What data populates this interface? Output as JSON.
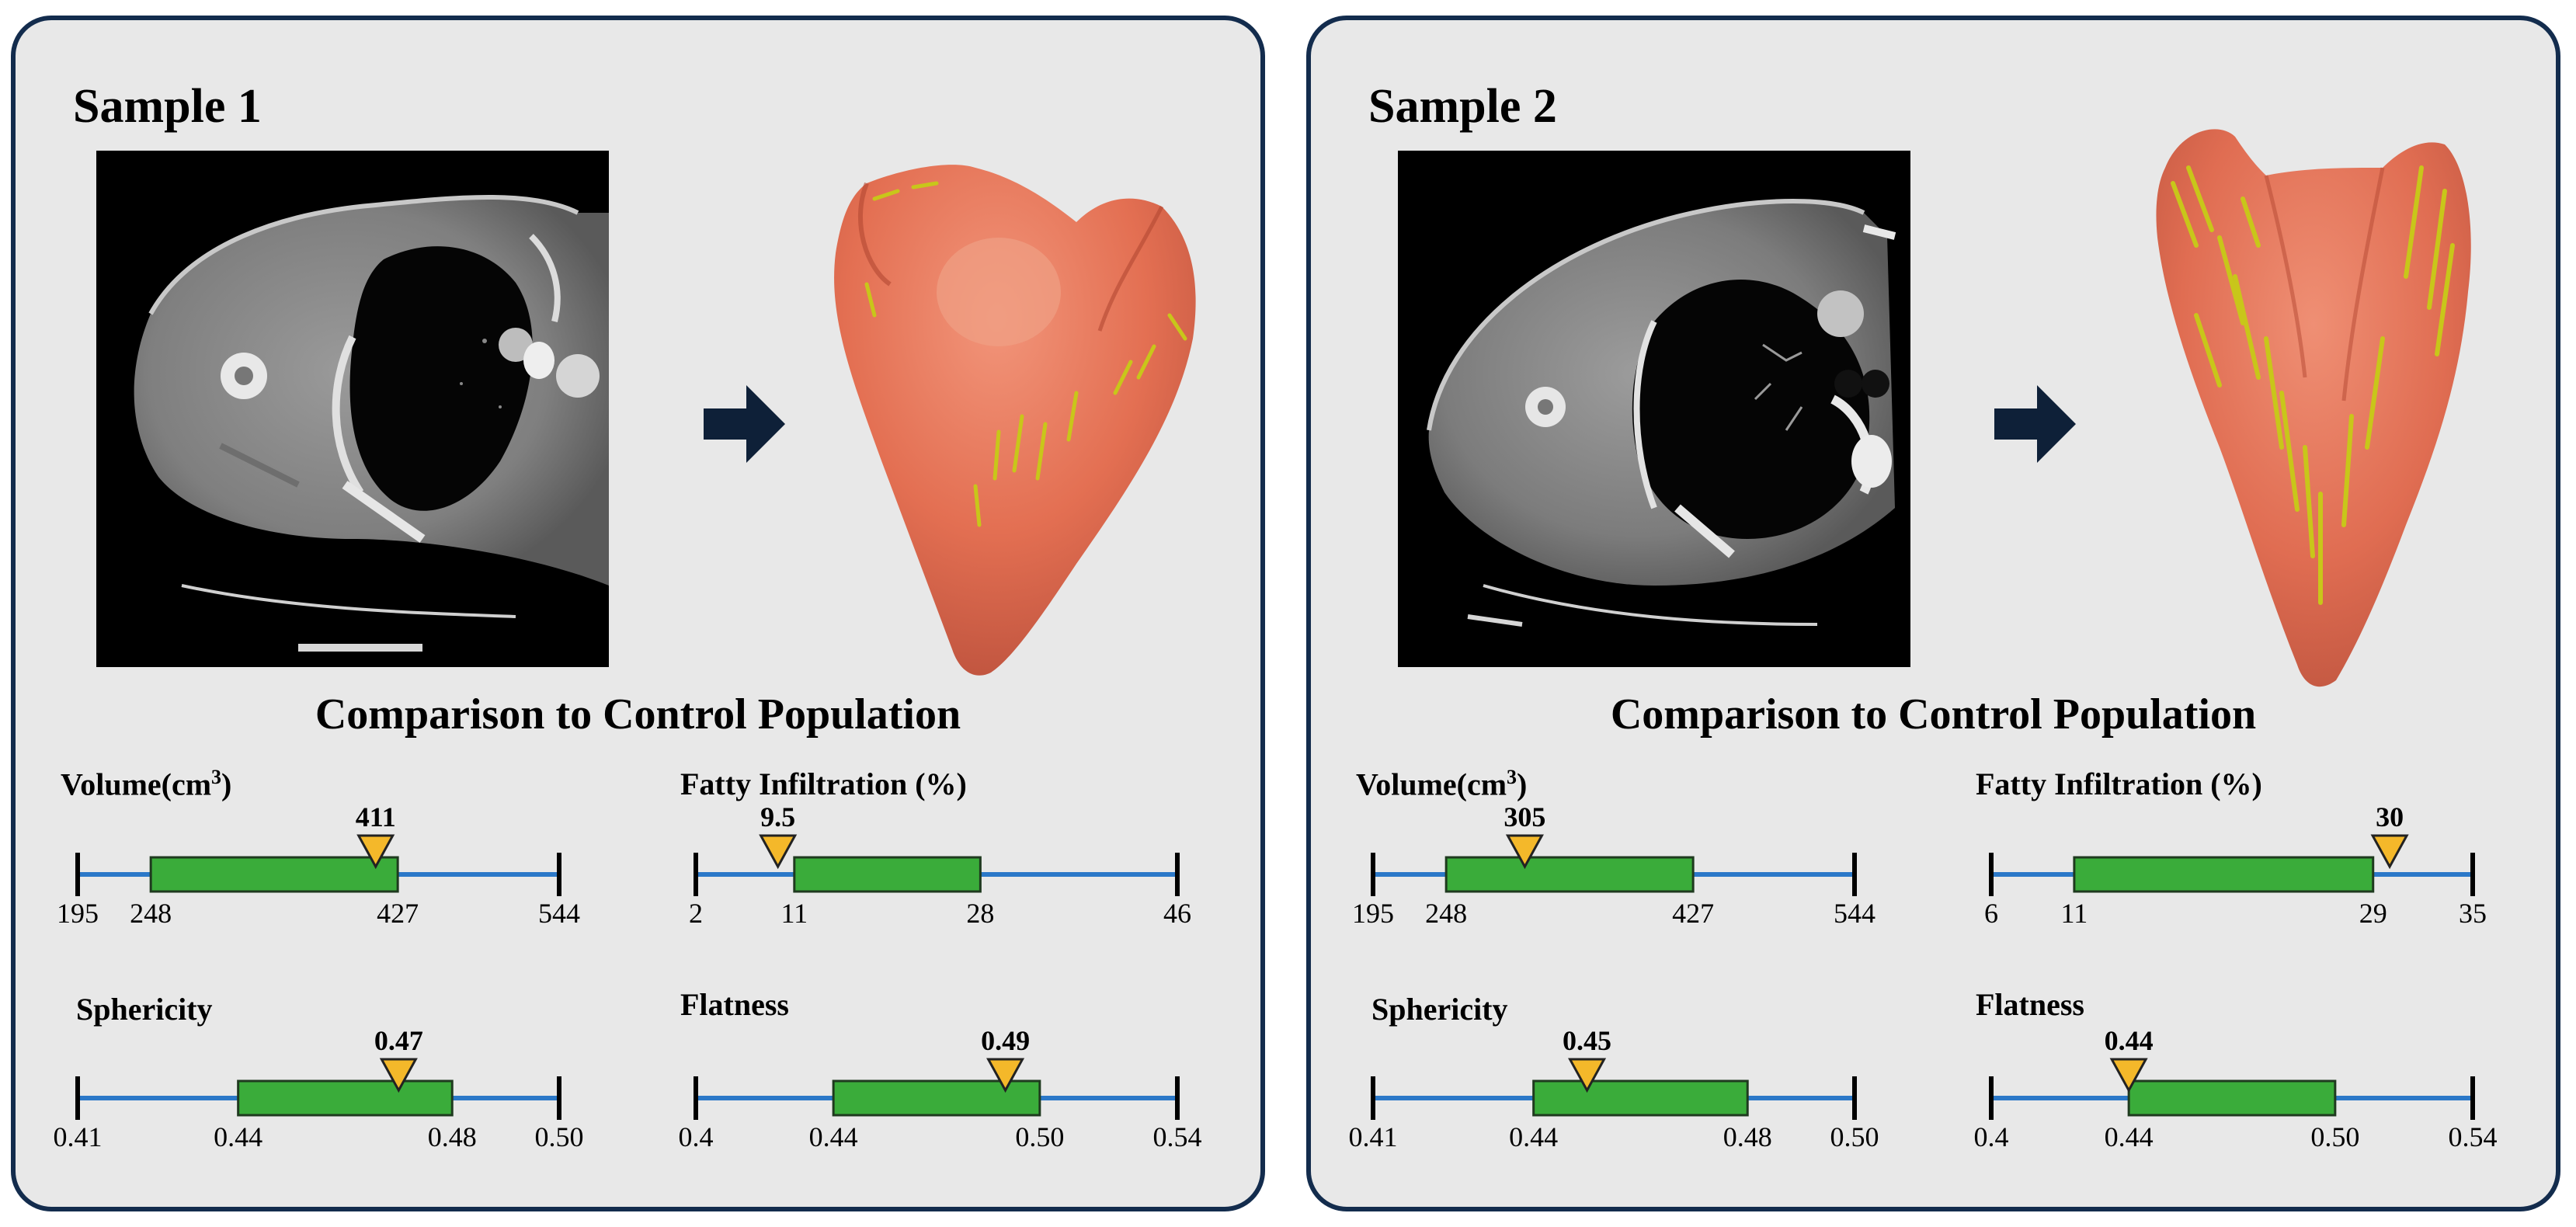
{
  "colors": {
    "panel_bg": "#e8e8e8",
    "panel_border": "#132c4d",
    "whisker": "#2b78c8",
    "box": "#3aac3a",
    "marker": "#f4b82a",
    "muscle": "#e9765a",
    "fat": "#c8c61a"
  },
  "samples": [
    {
      "title": "Sample 1",
      "comparison_title": "Comparison to Control Population",
      "metrics": [
        {
          "name": "Volume(cm",
          "sup": "3",
          "suffix": ")",
          "min": 195,
          "q1": 248,
          "q3": 427,
          "max": 544,
          "value": 411,
          "labels": {
            "min": "195",
            "q1": "248",
            "q3": "427",
            "max": "544",
            "value": "411"
          }
        },
        {
          "name": "Fatty Infiltration (%)",
          "sup": "",
          "suffix": "",
          "min": 2,
          "q1": 11,
          "q3": 28,
          "max": 46,
          "value": 9.5,
          "labels": {
            "min": "2",
            "q1": "11",
            "q3": "28",
            "max": "46",
            "value": "9.5"
          }
        },
        {
          "name": "Sphericity",
          "sup": "",
          "suffix": "",
          "min": 0.41,
          "q1": 0.44,
          "q3": 0.48,
          "max": 0.5,
          "value": 0.47,
          "labels": {
            "min": "0.41",
            "q1": "0.44",
            "q3": "0.48",
            "max": "0.50",
            "value": "0.47"
          }
        },
        {
          "name": "Flatness",
          "sup": "",
          "suffix": "",
          "min": 0.4,
          "q1": 0.44,
          "q3": 0.5,
          "max": 0.54,
          "value": 0.49,
          "labels": {
            "min": "0.4",
            "q1": "0.44",
            "q3": "0.50",
            "max": "0.54",
            "value": "0.49"
          }
        }
      ]
    },
    {
      "title": "Sample 2",
      "comparison_title": "Comparison to Control Population",
      "metrics": [
        {
          "name": "Volume(cm",
          "sup": "3",
          "suffix": ")",
          "min": 195,
          "q1": 248,
          "q3": 427,
          "max": 544,
          "value": 305,
          "labels": {
            "min": "195",
            "q1": "248",
            "q3": "427",
            "max": "544",
            "value": "305"
          }
        },
        {
          "name": "Fatty Infiltration (%)",
          "sup": "",
          "suffix": "",
          "min": 6,
          "q1": 11,
          "q3": 29,
          "max": 35,
          "value": 30,
          "labels": {
            "min": "6",
            "q1": "11",
            "q3": "29",
            "max": "35",
            "value": "30"
          }
        },
        {
          "name": "Sphericity",
          "sup": "",
          "suffix": "",
          "min": 0.41,
          "q1": 0.44,
          "q3": 0.48,
          "max": 0.5,
          "value": 0.45,
          "labels": {
            "min": "0.41",
            "q1": "0.44",
            "q3": "0.48",
            "max": "0.50",
            "value": "0.45"
          }
        },
        {
          "name": "Flatness",
          "sup": "",
          "suffix": "",
          "min": 0.4,
          "q1": 0.44,
          "q3": 0.5,
          "max": 0.54,
          "value": 0.44,
          "labels": {
            "min": "0.4",
            "q1": "0.44",
            "q3": "0.50",
            "max": "0.54",
            "value": "0.44"
          }
        }
      ]
    }
  ]
}
